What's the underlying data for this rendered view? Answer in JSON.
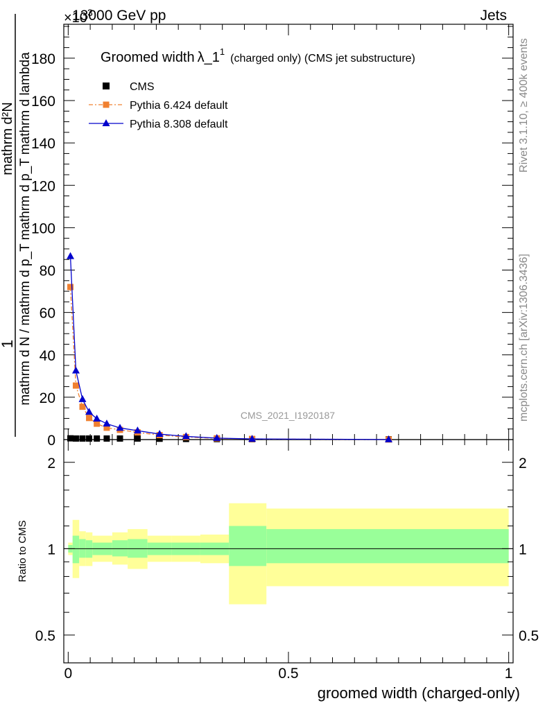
{
  "header": {
    "left_label": "13000 GeV pp",
    "right_label": "Jets",
    "exponent_label": "×10",
    "exponent_power": "3"
  },
  "side_labels": {
    "rivet": "Rivet 3.1.10, ≥ 400k events",
    "mcplots": "mcplots.cern.ch [arXiv:1306.3436]"
  },
  "watermark": "CMS_2021_I1920187",
  "colors": {
    "data": "#000000",
    "pythia6": "#f08030",
    "pythia8": "#0000cc",
    "band_inner": "#99ff99",
    "band_outer": "#ffff99"
  },
  "chart_data": [
    {
      "type": "line",
      "title": "Groomed width λ_1^1 (charged only) (CMS jet substructure)",
      "title_main": "Groomed width",
      "title_lambda": "λ_1",
      "title_sup": "1",
      "title_rest": "(charged only) (CMS jet substructure)",
      "ylabel_numerator": "1",
      "ylabel_denominator": "mathrm d N / mathrm d p_T mathrm d p_T mathrm d lambda",
      "ylabel_top": "mathrm d²N",
      "ylim": [
        0,
        196
      ],
      "yticks": [
        0,
        20,
        40,
        60,
        80,
        100,
        120,
        140,
        160,
        180
      ],
      "y_tick_labels": [
        "0",
        "20",
        "40",
        "60",
        "80",
        "100",
        "120",
        "140",
        "160",
        "180"
      ],
      "xlim": [
        -0.01,
        1.01
      ],
      "legend": [
        {
          "key": "data",
          "label": "CMS"
        },
        {
          "key": "pythia6",
          "label": "Pythia 6.424 default"
        },
        {
          "key": "pythia8",
          "label": "Pythia 8.308 default"
        }
      ],
      "series": [
        {
          "name": "CMS",
          "style": "data",
          "x": [
            0.005,
            0.0175,
            0.0325,
            0.0475,
            0.065,
            0.0875,
            0.1175,
            0.1575,
            0.2075,
            0.2675,
            0.3375,
            0.4175,
            0.7275
          ],
          "y": [
            0.6,
            0.5,
            0.5,
            0.5,
            0.5,
            0.5,
            0.5,
            0.5,
            0.4,
            0.3,
            0.25,
            0.2,
            0.15
          ]
        },
        {
          "name": "Pythia 6.424 default",
          "style": "pythia6",
          "x": [
            0.005,
            0.0175,
            0.0325,
            0.0475,
            0.065,
            0.0875,
            0.1175,
            0.1575,
            0.2075,
            0.2675,
            0.3375,
            0.4175,
            0.7275
          ],
          "y": [
            72,
            25.5,
            15.5,
            10.2,
            7.5,
            5.6,
            4.6,
            3.4,
            2.1,
            1.2,
            0.6,
            0.3,
            0.05
          ]
        },
        {
          "name": "Pythia 8.308 default",
          "style": "pythia8",
          "x": [
            0.005,
            0.0175,
            0.0325,
            0.0475,
            0.065,
            0.0875,
            0.1175,
            0.1575,
            0.2075,
            0.2675,
            0.3375,
            0.4175,
            0.7275
          ],
          "y": [
            86.5,
            32.5,
            19,
            13,
            9.8,
            7.5,
            5.5,
            4.2,
            2.6,
            1.5,
            0.7,
            0.3,
            0.05
          ]
        }
      ]
    },
    {
      "type": "area",
      "ylabel": "Ratio to CMS",
      "xlabel": "groomed width (charged-only)",
      "yscale": "log",
      "ylim": [
        0.4,
        2.4
      ],
      "xlim": [
        -0.01,
        1.01
      ],
      "yticks": [
        0.5,
        1,
        2
      ],
      "y_tick_labels": [
        "0.5",
        "1",
        "2"
      ],
      "xticks": [
        0,
        0.5,
        1
      ],
      "x_tick_labels": [
        "0",
        "0.5",
        "1"
      ],
      "reference_line": 1,
      "bins": [
        {
          "x0": 0.0,
          "x1": 0.01,
          "inner": [
            0.97,
            1.03
          ],
          "outer": [
            0.95,
            1.05
          ]
        },
        {
          "x0": 0.01,
          "x1": 0.025,
          "inner": [
            0.89,
            1.11
          ],
          "outer": [
            0.79,
            1.26
          ]
        },
        {
          "x0": 0.025,
          "x1": 0.04,
          "inner": [
            0.93,
            1.08
          ],
          "outer": [
            0.87,
            1.15
          ]
        },
        {
          "x0": 0.04,
          "x1": 0.055,
          "inner": [
            0.93,
            1.07
          ],
          "outer": [
            0.87,
            1.14
          ]
        },
        {
          "x0": 0.055,
          "x1": 0.075,
          "inner": [
            0.95,
            1.05
          ],
          "outer": [
            0.9,
            1.11
          ]
        },
        {
          "x0": 0.075,
          "x1": 0.1,
          "inner": [
            0.95,
            1.05
          ],
          "outer": [
            0.9,
            1.11
          ]
        },
        {
          "x0": 0.1,
          "x1": 0.135,
          "inner": [
            0.94,
            1.07
          ],
          "outer": [
            0.88,
            1.14
          ]
        },
        {
          "x0": 0.135,
          "x1": 0.18,
          "inner": [
            0.93,
            1.08
          ],
          "outer": [
            0.85,
            1.17
          ]
        },
        {
          "x0": 0.18,
          "x1": 0.235,
          "inner": [
            0.95,
            1.05
          ],
          "outer": [
            0.9,
            1.11
          ]
        },
        {
          "x0": 0.235,
          "x1": 0.3,
          "inner": [
            0.95,
            1.05
          ],
          "outer": [
            0.9,
            1.11
          ]
        },
        {
          "x0": 0.3,
          "x1": 0.365,
          "inner": [
            0.95,
            1.05
          ],
          "outer": [
            0.89,
            1.12
          ]
        },
        {
          "x0": 0.365,
          "x1": 0.45,
          "inner": [
            0.87,
            1.2
          ],
          "outer": [
            0.64,
            1.44
          ]
        },
        {
          "x0": 0.45,
          "x1": 1.0,
          "inner": [
            0.89,
            1.17
          ],
          "outer": [
            0.74,
            1.38
          ]
        }
      ]
    }
  ]
}
